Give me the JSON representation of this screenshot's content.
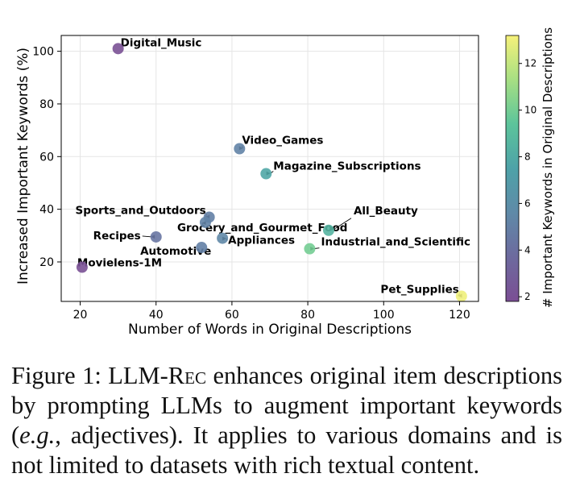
{
  "colors": {
    "colormap": [
      "#7b4e94",
      "#6d6a9e",
      "#5f8aa8",
      "#4ea2a8",
      "#5cc49b",
      "#a7df83",
      "#f6f17a"
    ],
    "grid": "#e5e5e5",
    "axis": "#000000",
    "caption_text": "#111111"
  },
  "chart_data": {
    "type": "scatter",
    "xlabel": "Number of Words in Original Descriptions",
    "ylabel": "Increased Important Keywords (%)",
    "xlim": [
      15,
      125
    ],
    "ylim": [
      5,
      106
    ],
    "xticks": [
      20,
      40,
      60,
      80,
      100,
      120
    ],
    "yticks": [
      20,
      40,
      60,
      80,
      100
    ],
    "grid": true,
    "colorbar": {
      "label": "# Important Keywords in Original Descriptions",
      "range": [
        1.8,
        13.2
      ],
      "ticks": [
        2,
        4,
        6,
        8,
        10,
        12
      ]
    },
    "points": [
      {
        "name": "Digital_Music",
        "x": 30,
        "y": 101,
        "c": 2
      },
      {
        "name": "Video_Games",
        "x": 62,
        "y": 63,
        "c": 5.2
      },
      {
        "name": "Magazine_Subscriptions",
        "x": 69,
        "y": 53.5,
        "c": 7.8
      },
      {
        "name": "Sports_and_Outdoors",
        "x": 54,
        "y": 37,
        "c": 5
      },
      {
        "name": "All_Beauty",
        "x": 85.5,
        "y": 32,
        "c": 8.5
      },
      {
        "name": "Grocery_and_Gourmet_Food",
        "x": 53,
        "y": 35,
        "c": 5.2
      },
      {
        "name": "Recipes",
        "x": 40,
        "y": 29.5,
        "c": 4.4
      },
      {
        "name": "Appliances",
        "x": 57.5,
        "y": 29,
        "c": 5.5
      },
      {
        "name": "Industrial_and_Scientific",
        "x": 80.5,
        "y": 25,
        "c": 10
      },
      {
        "name": "Automotive",
        "x": 52,
        "y": 25.5,
        "c": 5
      },
      {
        "name": "Movielens-1M",
        "x": 20.5,
        "y": 18,
        "c": 2
      },
      {
        "name": "Pet_Supplies",
        "x": 120.5,
        "y": 7,
        "c": 13
      }
    ]
  },
  "caption": {
    "figure_label": "Figure 1:",
    "model_name": "LLM-Rec",
    "text_1": "enhances original item descriptions by prompting LLMs to augment important keywords (",
    "eg": "e.g.",
    "text_2": ", adjectives). It applies to various domains and is not limited to datasets with rich textual content."
  }
}
